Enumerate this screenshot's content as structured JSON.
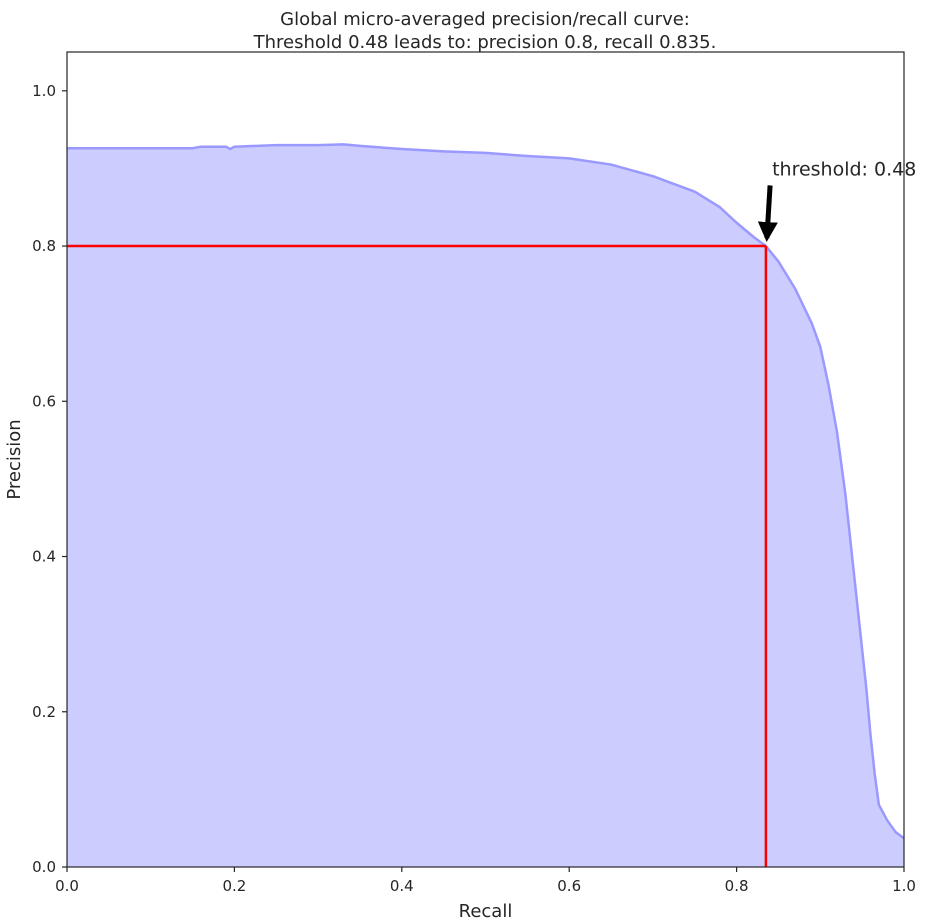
{
  "chart_data": {
    "type": "area",
    "title_lines": [
      "Global micro-averaged precision/recall curve:",
      "Threshold 0.48 leads to: precision 0.8, recall 0.835."
    ],
    "xlabel": "Recall",
    "ylabel": "Precision",
    "xlim": [
      0,
      1
    ],
    "ylim": [
      0,
      1.05
    ],
    "xticks": [
      0,
      0.2,
      0.4,
      0.6,
      0.8,
      1.0
    ],
    "xtick_labels": [
      "0.0",
      "0.2",
      "0.4",
      "0.6",
      "0.8",
      "1.0"
    ],
    "yticks": [
      0,
      0.2,
      0.4,
      0.6,
      0.8,
      1.0
    ],
    "ytick_labels": [
      "0.0",
      "0.2",
      "0.4",
      "0.6",
      "0.8",
      "1.0"
    ],
    "grid": false,
    "curve": {
      "color": "#9999ff",
      "fill_color": "#ccccff",
      "recall": [
        0.0,
        0.05,
        0.1,
        0.15,
        0.16,
        0.19,
        0.195,
        0.2,
        0.25,
        0.3,
        0.33,
        0.35,
        0.4,
        0.45,
        0.5,
        0.55,
        0.6,
        0.65,
        0.7,
        0.75,
        0.78,
        0.8,
        0.82,
        0.835,
        0.85,
        0.87,
        0.89,
        0.9,
        0.91,
        0.92,
        0.93,
        0.935,
        0.94,
        0.945,
        0.95,
        0.955,
        0.96,
        0.965,
        0.97,
        0.98,
        0.99,
        1.0
      ],
      "precision": [
        0.926,
        0.926,
        0.926,
        0.926,
        0.928,
        0.928,
        0.925,
        0.928,
        0.93,
        0.93,
        0.931,
        0.929,
        0.925,
        0.922,
        0.92,
        0.916,
        0.913,
        0.905,
        0.89,
        0.87,
        0.85,
        0.83,
        0.812,
        0.8,
        0.78,
        0.745,
        0.7,
        0.67,
        0.62,
        0.56,
        0.48,
        0.43,
        0.38,
        0.33,
        0.28,
        0.23,
        0.17,
        0.12,
        0.08,
        0.06,
        0.045,
        0.037
      ]
    },
    "threshold_lines": {
      "color": "#ff0000",
      "precision": 0.8,
      "recall": 0.835
    },
    "annotation": {
      "text": "threshold: 0.48",
      "point": [
        0.835,
        0.8
      ],
      "text_position": [
        0.84,
        0.9
      ]
    }
  }
}
